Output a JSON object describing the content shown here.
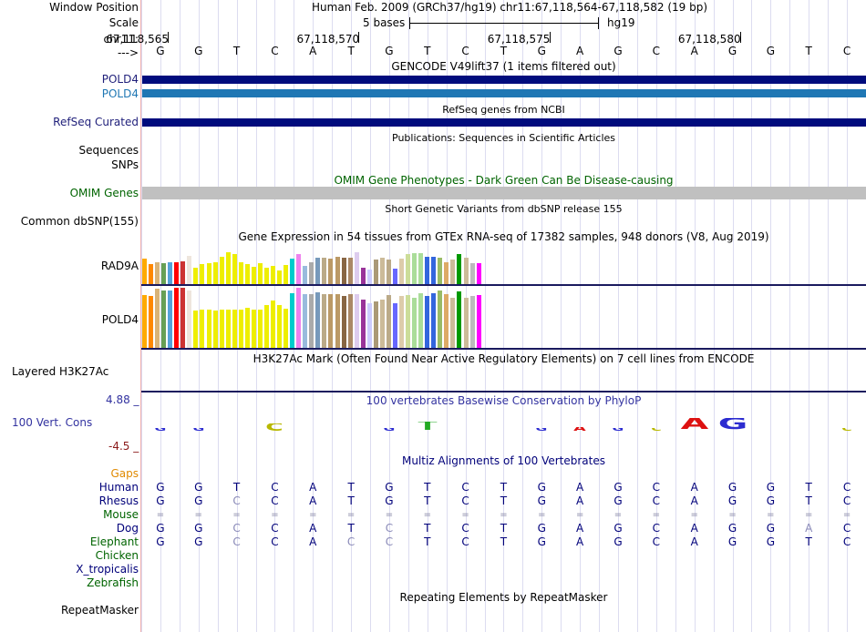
{
  "header": {
    "window_position_label": "Window Position",
    "scale_label": "Scale",
    "chrom_label": "chr11:",
    "arrow_label": "--->",
    "assembly_text": "Human Feb. 2009 (GRCh37/hg19)   chr11:67,118,564-67,118,582 (19 bp)",
    "scale_text": "5 bases",
    "db_text": "hg19",
    "coords": [
      "67,118,565",
      "67,118,570",
      "67,118,575",
      "67,118,580"
    ]
  },
  "sequence": [
    "G",
    "G",
    "T",
    "C",
    "A",
    "T",
    "G",
    "T",
    "C",
    "T",
    "G",
    "A",
    "G",
    "C",
    "A",
    "G",
    "G",
    "T",
    "C"
  ],
  "tracks": {
    "gencode": {
      "title": "GENCODE V49lift37 (1 items filtered out)",
      "items": [
        "POLD4",
        "POLD4"
      ]
    },
    "refseq": {
      "title": "RefSeq genes from NCBI",
      "label": "RefSeq Curated"
    },
    "publications": {
      "title": "Publications: Sequences in Scientific Articles",
      "labels": [
        "Sequences",
        "SNPs"
      ]
    },
    "omim": {
      "title": "OMIM Gene Phenotypes - Dark Green Can Be Disease-causing",
      "label": "OMIM Genes"
    },
    "dbsnp": {
      "title": "Short Genetic Variants from dbSNP release 155",
      "label": "Common dbSNP(155)"
    },
    "gtex": {
      "title": "Gene Expression in 54 tissues from GTEx RNA-seq of 17382 samples, 948 donors (V8, Aug 2019)",
      "genes": [
        "RAD9A",
        "POLD4"
      ],
      "colors": [
        "#FFAA00",
        "#FF8800",
        "#D9B377",
        "#66A055",
        "#55A3D9",
        "#FF0000",
        "#CC3333",
        "#EEE6DD",
        "#EEEE00",
        "#EEEE00",
        "#EEEE00",
        "#EEEE00",
        "#EEEE00",
        "#EEEE00",
        "#EEEE00",
        "#EEEE00",
        "#EEEE00",
        "#EEEE00",
        "#EEEE00",
        "#EEEE00",
        "#EEEE00",
        "#EEEE00",
        "#EEEE00",
        "#00CCCC",
        "#EE82EE",
        "#99BBDD",
        "#AAAAAA",
        "#7799BB",
        "#BBAA88",
        "#BB9966",
        "#BB9966",
        "#886644",
        "#AA8866",
        "#DDCCEE",
        "#993399",
        "#CCCCFF",
        "#AA9977",
        "#CCBB99",
        "#BBAA88",
        "#6666FF",
        "#DDCCAA",
        "#CCDD99",
        "#AADD99",
        "#AADD99",
        "#3366DD",
        "#3366DD",
        "#99BB66",
        "#DDAA66",
        "#CCBB99",
        "#009900",
        "#CCBB99",
        "#BBBBBB",
        "#FF00FF"
      ],
      "rad9a_values": [
        0.66,
        0.52,
        0.58,
        0.54,
        0.57,
        0.57,
        0.6,
        0.74,
        0.44,
        0.52,
        0.54,
        0.58,
        0.72,
        0.84,
        0.79,
        0.56,
        0.52,
        0.46,
        0.54,
        0.42,
        0.48,
        0.36,
        0.5,
        0.66,
        0.79,
        0.47,
        0.57,
        0.68,
        0.68,
        0.66,
        0.72,
        0.68,
        0.68,
        0.84,
        0.42,
        0.38,
        0.64,
        0.7,
        0.64,
        0.4,
        0.66,
        0.79,
        0.8,
        0.8,
        0.72,
        0.72,
        0.7,
        0.58,
        0.64,
        0.79,
        0.68,
        0.54,
        0.54
      ],
      "pold4_values": [
        0.88,
        0.86,
        0.98,
        0.95,
        0.96,
        1.0,
        1.0,
        0.95,
        0.62,
        0.64,
        0.64,
        0.62,
        0.64,
        0.64,
        0.64,
        0.64,
        0.67,
        0.64,
        0.64,
        0.71,
        0.79,
        0.71,
        0.65,
        0.91,
        1.0,
        0.89,
        0.89,
        0.92,
        0.9,
        0.9,
        0.9,
        0.86,
        0.9,
        0.89,
        0.8,
        0.74,
        0.78,
        0.8,
        0.88,
        0.74,
        0.86,
        0.88,
        0.83,
        0.91,
        0.86,
        0.91,
        0.95,
        0.89,
        0.84,
        0.94,
        0.84,
        0.86,
        0.88
      ]
    },
    "h3k27ac": {
      "title": "H3K27Ac Mark (Often Found Near Active Regulatory Elements) on 7 cell lines from ENCODE",
      "label": "Layered H3K27Ac"
    },
    "phylop": {
      "title": "100 vertebrates Basewise Conservation by PhyloP",
      "label": "100 Vert. Cons",
      "max_label": "4.88 _",
      "min_label": "-4.5 _",
      "values": [
        0.15,
        0.1,
        0.0,
        0.6,
        0.0,
        0.0,
        0.1,
        0.7,
        0.0,
        0.0,
        0.2,
        0.25,
        0.18,
        0.2,
        1.0,
        1.0,
        0.0,
        0.0,
        0.1
      ]
    },
    "multiz": {
      "title": "Multiz Alignments of 100 Vertebrates",
      "species": [
        {
          "name": "Gaps",
          "color": "#E08A00"
        },
        {
          "name": "Human",
          "color": "#00007A"
        },
        {
          "name": "Rhesus",
          "color": "#00007A"
        },
        {
          "name": "Mouse",
          "color": "#006400"
        },
        {
          "name": "Dog",
          "color": "#00007A"
        },
        {
          "name": "Elephant",
          "color": "#006400"
        },
        {
          "name": "Chicken",
          "color": "#006400"
        },
        {
          "name": "X_tropicalis",
          "color": "#00007A"
        },
        {
          "name": "Zebrafish",
          "color": "#006400"
        }
      ],
      "rows": {
        "human": [
          "G",
          "G",
          "T",
          "C",
          "A",
          "T",
          "G",
          "T",
          "C",
          "T",
          "G",
          "A",
          "G",
          "C",
          "A",
          "G",
          "G",
          "T",
          "C"
        ],
        "rhesus": [
          "G",
          "G",
          "C",
          "C",
          "A",
          "T",
          "G",
          "T",
          "C",
          "T",
          "G",
          "A",
          "G",
          "C",
          "A",
          "G",
          "G",
          "T",
          "C"
        ],
        "mouse": [
          "=",
          "=",
          "=",
          "=",
          "=",
          "=",
          "=",
          "=",
          "=",
          "=",
          "=",
          "=",
          "=",
          "=",
          "=",
          "=",
          "=",
          "=",
          "="
        ],
        "dog": [
          "G",
          "G",
          "C",
          "C",
          "A",
          "T",
          "C",
          "T",
          "C",
          "T",
          "G",
          "A",
          "G",
          "C",
          "A",
          "G",
          "G",
          "A",
          "C"
        ],
        "elephant": [
          "G",
          "G",
          "C",
          "C",
          "A",
          "C",
          "C",
          "T",
          "C",
          "T",
          "G",
          "A",
          "G",
          "C",
          "A",
          "G",
          "G",
          "T",
          "C"
        ]
      },
      "mismatch": {
        "rhesus": [
          2
        ],
        "dog": [
          2,
          6,
          17
        ],
        "elephant": [
          2,
          5,
          6
        ]
      }
    },
    "repeatmasker": {
      "title": "Repeating Elements by RepeatMasker",
      "label": "RepeatMasker"
    }
  },
  "colors": {
    "navy": "#000C7D",
    "gencode_light": "#1F77B4",
    "omim_bar": "#C0C0C0",
    "omim_text": "#006400",
    "label_blue": "#1F1F7A",
    "phylop_text": "#3333A0",
    "phylop_min": "#8B1A1A"
  }
}
